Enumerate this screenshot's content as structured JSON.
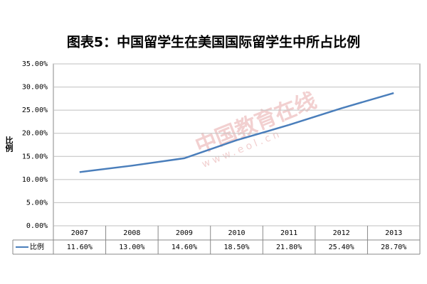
{
  "chart_data": {
    "type": "line",
    "title": "图表5：中国留学生在美国国际留学生中所占比例",
    "y_label": "比例",
    "watermark": [
      "中国教育在线",
      "www.eol.cn"
    ],
    "categories": [
      "2007",
      "2008",
      "2009",
      "2010",
      "2011",
      "2012",
      "2013"
    ],
    "series": [
      {
        "name": "比例",
        "color": "#4a7ebb",
        "values": [
          11.6,
          13.0,
          14.6,
          18.5,
          21.8,
          25.4,
          28.7
        ],
        "value_labels": [
          "11.60%",
          "13.00%",
          "14.60%",
          "18.50%",
          "21.80%",
          "25.40%",
          "28.70%"
        ]
      }
    ],
    "ylim": [
      0,
      35
    ],
    "yticks": [
      {
        "value": 0,
        "label": "0.00%"
      },
      {
        "value": 5,
        "label": "5.00%"
      },
      {
        "value": 10,
        "label": "10.00%"
      },
      {
        "value": 15,
        "label": "15.00%"
      },
      {
        "value": 20,
        "label": "20.00%"
      },
      {
        "value": 25,
        "label": "25.00%"
      },
      {
        "value": 30,
        "label": "30.00%"
      },
      {
        "value": 35,
        "label": "35.00%"
      }
    ],
    "grid": true
  }
}
